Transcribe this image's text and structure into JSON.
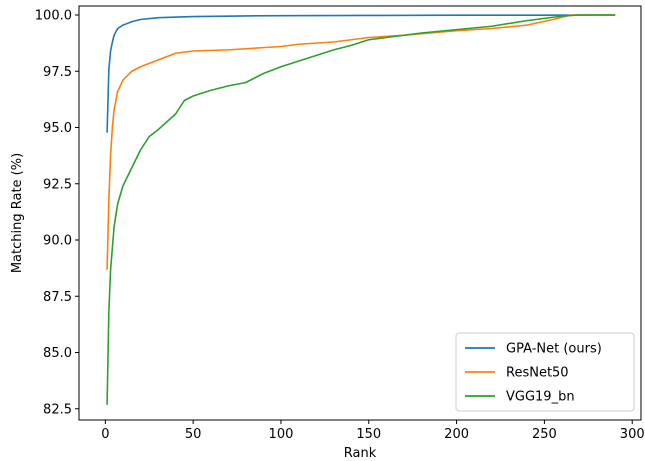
{
  "chart_data": {
    "type": "line",
    "xlabel": "Rank",
    "ylabel": "Matching Rate (%)",
    "xlim": [
      -15,
      305
    ],
    "ylim": [
      82.0,
      100.4
    ],
    "xticks": [
      "0",
      "50",
      "100",
      "150",
      "200",
      "250",
      "300"
    ],
    "xtick_values": [
      0,
      50,
      100,
      150,
      200,
      250,
      300
    ],
    "yticks": [
      "82.5",
      "85.0",
      "87.5",
      "90.0",
      "92.5",
      "95.0",
      "97.5",
      "100.0"
    ],
    "ytick_values": [
      82.5,
      85.0,
      87.5,
      90.0,
      92.5,
      95.0,
      97.5,
      100.0
    ],
    "grid": false,
    "legend_position": "lower-right",
    "series": [
      {
        "name": "GPA-Net (ours)",
        "color": "#1f77b4",
        "points": [
          [
            1,
            94.8
          ],
          [
            2,
            97.6
          ],
          [
            3,
            98.4
          ],
          [
            4,
            98.8
          ],
          [
            5,
            99.1
          ],
          [
            7,
            99.4
          ],
          [
            10,
            99.55
          ],
          [
            15,
            99.7
          ],
          [
            20,
            99.8
          ],
          [
            30,
            99.88
          ],
          [
            50,
            99.93
          ],
          [
            80,
            99.96
          ],
          [
            100,
            99.97
          ],
          [
            150,
            99.98
          ],
          [
            200,
            99.99
          ],
          [
            250,
            99.99
          ],
          [
            290,
            100.0
          ]
        ]
      },
      {
        "name": "ResNet50",
        "color": "#ff7f0e",
        "points": [
          [
            1,
            88.7
          ],
          [
            2,
            91.8
          ],
          [
            3,
            93.8
          ],
          [
            4,
            95.0
          ],
          [
            5,
            95.8
          ],
          [
            7,
            96.6
          ],
          [
            10,
            97.1
          ],
          [
            15,
            97.5
          ],
          [
            20,
            97.7
          ],
          [
            30,
            98.0
          ],
          [
            40,
            98.3
          ],
          [
            50,
            98.4
          ],
          [
            70,
            98.45
          ],
          [
            90,
            98.55
          ],
          [
            100,
            98.6
          ],
          [
            110,
            98.7
          ],
          [
            130,
            98.8
          ],
          [
            150,
            99.0
          ],
          [
            170,
            99.1
          ],
          [
            200,
            99.3
          ],
          [
            220,
            99.4
          ],
          [
            240,
            99.55
          ],
          [
            255,
            99.8
          ],
          [
            265,
            100.0
          ],
          [
            290,
            100.0
          ]
        ]
      },
      {
        "name": "VGG19_bn",
        "color": "#2ca02c",
        "points": [
          [
            1,
            82.7
          ],
          [
            2,
            86.8
          ],
          [
            3,
            88.7
          ],
          [
            5,
            90.6
          ],
          [
            7,
            91.6
          ],
          [
            10,
            92.4
          ],
          [
            15,
            93.2
          ],
          [
            20,
            94.0
          ],
          [
            25,
            94.6
          ],
          [
            30,
            94.9
          ],
          [
            40,
            95.6
          ],
          [
            45,
            96.2
          ],
          [
            50,
            96.4
          ],
          [
            60,
            96.65
          ],
          [
            70,
            96.85
          ],
          [
            80,
            97.0
          ],
          [
            90,
            97.4
          ],
          [
            100,
            97.7
          ],
          [
            110,
            97.95
          ],
          [
            120,
            98.2
          ],
          [
            130,
            98.45
          ],
          [
            140,
            98.65
          ],
          [
            150,
            98.9
          ],
          [
            160,
            99.0
          ],
          [
            170,
            99.1
          ],
          [
            180,
            99.2
          ],
          [
            200,
            99.35
          ],
          [
            220,
            99.5
          ],
          [
            240,
            99.75
          ],
          [
            260,
            99.95
          ],
          [
            270,
            100.0
          ],
          [
            290,
            100.0
          ]
        ]
      }
    ]
  }
}
